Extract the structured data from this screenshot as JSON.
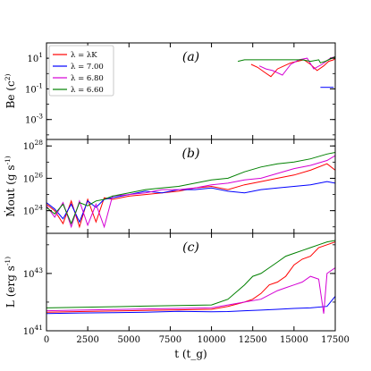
{
  "chart_data": {
    "type": "line",
    "xlabel": "t (t_g)",
    "xlim": [
      0,
      17500
    ],
    "xticks": [
      0,
      2500,
      5000,
      7500,
      10000,
      12500,
      15000,
      17500
    ],
    "xtick_labels": [
      "0",
      "2500",
      "5000",
      "7500",
      "10000",
      "12500",
      "15000",
      "17500"
    ],
    "legend": {
      "placement": "top-left of panel (a)",
      "entries": [
        "λ = λK",
        "λ = 7.00",
        "λ = 6.80",
        "λ = 6.60"
      ]
    },
    "colors": {
      "λ = λK": "#ff0000",
      "λ = 7.00": "#0000ff",
      "λ = 6.80": "#d400d4",
      "λ = 6.60": "#008000"
    },
    "panels": [
      {
        "tag": "(a)",
        "ylabel": "Be (c^2)",
        "yscale": "log",
        "ylim_log10": [
          -4.3,
          2.0
        ],
        "yticks": [
          {
            "log10": 1,
            "label": "10^1"
          },
          {
            "log10": -1,
            "label": "10^-1"
          },
          {
            "log10": -3,
            "label": "10^-3"
          }
        ],
        "series": [
          {
            "name": "λ = λK",
            "x": [
              12400,
              12800,
              13200,
              13600,
              14000,
              14400,
              14800,
              15200,
              15600,
              16000,
              16400,
              16800,
              17100,
              17400,
              17500
            ],
            "y_log10": [
              0.6,
              0.4,
              0.1,
              -0.2,
              0.3,
              0.5,
              0.7,
              0.8,
              0.9,
              0.6,
              0.2,
              0.5,
              0.8,
              0.9,
              1.0
            ]
          },
          {
            "name": "λ = 7.00",
            "x": [
              16600,
              16800,
              17000,
              17300,
              17400
            ],
            "y_log10": [
              -0.9,
              -0.9,
              -0.9,
              -0.9,
              -0.9
            ]
          },
          {
            "name": "λ = 6.80",
            "x": [
              12900,
              13300,
              13700,
              14300,
              14800,
              15300,
              15800,
              16200,
              16700,
              17200,
              17500
            ],
            "y_log10": [
              0.5,
              0.3,
              0.2,
              -0.1,
              0.6,
              0.9,
              1.0,
              0.3,
              0.6,
              1.0,
              1.1
            ]
          },
          {
            "name": "λ = 6.60",
            "x": [
              11600,
              12000,
              12500,
              13000,
              13500,
              14000,
              14500,
              15000,
              15500,
              16000,
              16500,
              16600,
              16900,
              17200,
              17500
            ],
            "y_log10": [
              0.8,
              0.9,
              0.9,
              0.9,
              0.9,
              0.9,
              0.9,
              0.9,
              0.9,
              0.8,
              0.9,
              0.7,
              0.8,
              0.95,
              1.1
            ]
          }
        ]
      },
      {
        "tag": "(b)",
        "ylabel": "Ṁout (g s^-1)",
        "yscale": "log",
        "ylim_log10": [
          22.6,
          28.4
        ],
        "yticks": [
          {
            "log10": 28,
            "label": "10^28"
          },
          {
            "log10": 26,
            "label": "10^26"
          },
          {
            "log10": 24,
            "label": "10^24"
          }
        ],
        "series": [
          {
            "name": "λ = λK",
            "x": [
              0,
              500,
              1000,
              1500,
              2000,
              2500,
              3000,
              3500,
              4000,
              5000,
              6000,
              7000,
              8000,
              9000,
              10000,
              11000,
              12000,
              13000,
              14000,
              15000,
              16000,
              17000,
              17500
            ],
            "y_log10": [
              24.4,
              24.0,
              23.2,
              24.6,
              23.0,
              24.7,
              23.3,
              24.8,
              24.7,
              24.9,
              25.0,
              25.1,
              25.2,
              25.4,
              25.5,
              25.3,
              25.6,
              25.8,
              26.0,
              26.2,
              26.5,
              26.9,
              26.5
            ]
          },
          {
            "name": "λ = 7.00",
            "x": [
              0,
              500,
              1000,
              1500,
              2000,
              2500,
              3000,
              3500,
              4000,
              5000,
              6000,
              7000,
              8000,
              9000,
              10000,
              11000,
              12000,
              13000,
              14000,
              15000,
              16000,
              17000,
              17500
            ],
            "y_log10": [
              24.5,
              24.1,
              23.5,
              24.4,
              23.3,
              24.6,
              24.2,
              24.7,
              24.8,
              25.0,
              25.2,
              25.1,
              25.3,
              25.3,
              25.4,
              25.2,
              25.1,
              25.3,
              25.4,
              25.5,
              25.6,
              25.8,
              25.7
            ]
          },
          {
            "name": "λ = 6.80",
            "x": [
              0,
              500,
              1000,
              1500,
              2000,
              2500,
              3000,
              3500,
              4000,
              5000,
              6000,
              7000,
              8000,
              9000,
              10000,
              11000,
              12000,
              13000,
              14000,
              15000,
              16000,
              17000,
              17500
            ],
            "y_log10": [
              24.3,
              23.6,
              24.5,
              23.0,
              24.6,
              23.1,
              24.4,
              23.0,
              24.9,
              25.0,
              25.1,
              25.3,
              25.3,
              25.4,
              25.6,
              25.7,
              25.9,
              26.0,
              26.3,
              26.6,
              26.8,
              27.1,
              27.4
            ]
          },
          {
            "name": "λ = 6.60",
            "x": [
              0,
              500,
              1000,
              1500,
              2000,
              2500,
              3000,
              3500,
              4000,
              5000,
              6000,
              7000,
              8000,
              9000,
              10000,
              11000,
              12000,
              13000,
              14000,
              15000,
              16000,
              17000,
              17500
            ],
            "y_log10": [
              24.2,
              23.8,
              24.4,
              23.2,
              24.5,
              24.3,
              24.6,
              24.7,
              24.9,
              25.1,
              25.3,
              25.4,
              25.5,
              25.7,
              25.9,
              26.0,
              26.4,
              26.7,
              26.9,
              27.0,
              27.2,
              27.5,
              27.6
            ]
          }
        ]
      },
      {
        "tag": "(c)",
        "ylabel": "L (erg s^-1)",
        "yscale": "log",
        "ylim_log10": [
          41.0,
          44.4
        ],
        "yticks": [
          {
            "log10": 43,
            "label": "10^43"
          },
          {
            "log10": 41,
            "label": "10^41"
          }
        ],
        "series": [
          {
            "name": "λ = λK",
            "x": [
              0,
              2000,
              4000,
              6000,
              8000,
              10000,
              11000,
              12000,
              12500,
              13000,
              13500,
              14000,
              14500,
              15000,
              15500,
              16000,
              16500,
              17000,
              17500
            ],
            "y_log10": [
              41.65,
              41.67,
              41.69,
              41.71,
              41.73,
              41.75,
              41.85,
              42.0,
              42.1,
              42.3,
              42.6,
              42.7,
              42.9,
              43.3,
              43.5,
              43.6,
              43.9,
              44.0,
              44.1
            ]
          },
          {
            "name": "λ = 7.00",
            "x": [
              0,
              2000,
              4000,
              6000,
              8000,
              10000,
              11000,
              12000,
              13000,
              14000,
              15000,
              16000,
              17000,
              17500
            ],
            "y_log10": [
              41.6,
              41.62,
              41.63,
              41.65,
              41.68,
              41.66,
              41.67,
              41.7,
              41.72,
              41.75,
              41.78,
              41.8,
              41.85,
              42.2
            ]
          },
          {
            "name": "λ = 6.80",
            "x": [
              0,
              2000,
              4000,
              6000,
              8000,
              10000,
              11000,
              12000,
              13000,
              14000,
              14500,
              15000,
              15500,
              16000,
              16500,
              16800,
              17000,
              17500
            ],
            "y_log10": [
              41.7,
              41.72,
              41.74,
              41.76,
              41.78,
              41.8,
              41.9,
              42.0,
              42.1,
              42.4,
              42.5,
              42.6,
              42.7,
              42.9,
              42.8,
              41.6,
              43.0,
              43.2
            ]
          },
          {
            "name": "λ = 6.60",
            "x": [
              0,
              2000,
              4000,
              6000,
              8000,
              10000,
              11000,
              12000,
              12500,
              13000,
              13500,
              14000,
              14500,
              15000,
              15500,
              16000,
              16500,
              17000,
              17500
            ],
            "y_log10": [
              41.8,
              41.82,
              41.84,
              41.86,
              41.88,
              41.9,
              42.1,
              42.6,
              42.9,
              43.0,
              43.2,
              43.4,
              43.6,
              43.7,
              43.8,
              43.9,
              44.0,
              44.1,
              44.15
            ]
          }
        ]
      }
    ]
  }
}
